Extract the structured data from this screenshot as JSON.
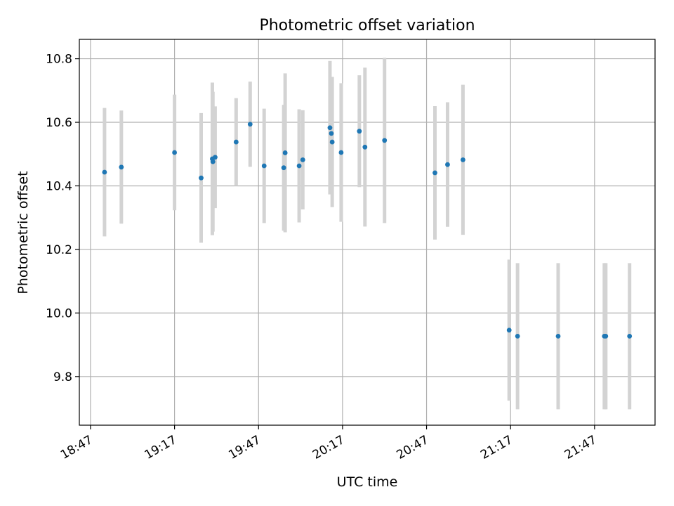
{
  "chart_data": {
    "type": "scatter",
    "title": "Photometric offset variation",
    "xlabel": "UTC time",
    "ylabel": "Photometric offset",
    "x_ticks": [
      "18:47",
      "19:17",
      "19:47",
      "20:17",
      "20:47",
      "21:17",
      "21:47"
    ],
    "x_tick_minutes": [
      1127,
      1157,
      1187,
      1217,
      1247,
      1277,
      1307
    ],
    "x_range_minutes": [
      1123,
      1328.6
    ],
    "y_ticks": [
      "9.8",
      "10.0",
      "10.2",
      "10.4",
      "10.6",
      "10.8"
    ],
    "ylim": [
      9.647,
      10.861
    ],
    "grid": true,
    "marker_color": "#1f77b4",
    "errorbar_color": "#d3d3d3",
    "points": [
      {
        "time": "18:52",
        "y": 10.443,
        "err": 0.202
      },
      {
        "time": "18:58",
        "y": 10.459,
        "err": 0.178
      },
      {
        "time": "19:17",
        "y": 10.505,
        "err": 0.182
      },
      {
        "time": "19:26.5",
        "y": 10.425,
        "err": 0.204
      },
      {
        "time": "19:30.5",
        "y": 10.485,
        "err": 0.24
      },
      {
        "time": "19:30.7",
        "y": 10.476,
        "err": 0.22
      },
      {
        "time": "19:31.5",
        "y": 10.49,
        "err": 0.16
      },
      {
        "time": "19:39",
        "y": 10.538,
        "err": 0.138
      },
      {
        "time": "19:44",
        "y": 10.594,
        "err": 0.134
      },
      {
        "time": "19:49",
        "y": 10.463,
        "err": 0.18
      },
      {
        "time": "19:56",
        "y": 10.457,
        "err": 0.198
      },
      {
        "time": "19:56.5",
        "y": 10.504,
        "err": 0.25
      },
      {
        "time": "20:01.5",
        "y": 10.463,
        "err": 0.178
      },
      {
        "time": "20:02.8",
        "y": 10.482,
        "err": 0.156
      },
      {
        "time": "20:12.5",
        "y": 10.583,
        "err": 0.21
      },
      {
        "time": "20:13",
        "y": 10.565,
        "err": 0.17
      },
      {
        "time": "20:13.3",
        "y": 10.538,
        "err": 0.205
      },
      {
        "time": "20:16.5",
        "y": 10.505,
        "err": 0.218
      },
      {
        "time": "20:23",
        "y": 10.572,
        "err": 0.176
      },
      {
        "time": "20:25",
        "y": 10.522,
        "err": 0.25
      },
      {
        "time": "20:32",
        "y": 10.543,
        "err": 0.26
      },
      {
        "time": "20:50",
        "y": 10.441,
        "err": 0.21
      },
      {
        "time": "20:54.5",
        "y": 10.467,
        "err": 0.196
      },
      {
        "time": "20:60",
        "y": 10.482,
        "err": 0.236
      },
      {
        "time": "21:16.5",
        "y": 9.946,
        "err": 0.222
      },
      {
        "time": "21:19.5",
        "y": 9.927,
        "err": 0.23
      },
      {
        "time": "21:34",
        "y": 9.927,
        "err": 0.23
      },
      {
        "time": "21:50.5",
        "y": 9.927,
        "err": 0.23
      },
      {
        "time": "21:51",
        "y": 9.927,
        "err": 0.23
      },
      {
        "time": "21:59.5",
        "y": 9.927,
        "err": 0.23
      }
    ]
  }
}
